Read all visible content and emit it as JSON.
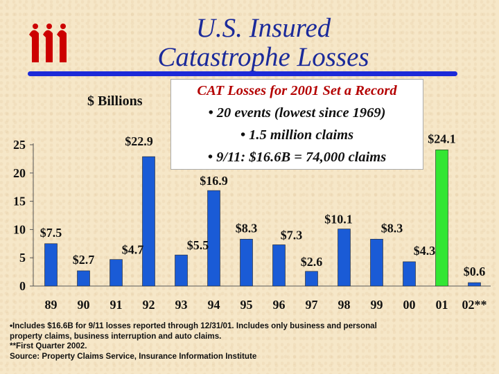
{
  "title_lines": [
    "U.S. Insured",
    "Catastrophe Losses"
  ],
  "y_unit_label": "$ Billions",
  "callout": {
    "heading": "CAT Losses for 2001 Set a Record",
    "lines": [
      "• 20 events (lowest since 1969)",
      "• 1.5 million claims",
      "• 9/11: $16.6B = 74,000 claims"
    ]
  },
  "footnote_lines": [
    "•Includes $16.6B for 9/11 losses reported through 12/31/01.  Includes only business and personal",
    "property claims, business interruption and auto claims.",
    "**First Quarter 2002.",
    "Source:  Property Claims Service, Insurance Information Institute"
  ],
  "colors": {
    "bar": "#1a5bd6",
    "highlight": "#33e633",
    "title": "#1b2a9a",
    "logo": "#cc0000",
    "callout_heading": "#b40000"
  },
  "logo_icon": "iii-logo",
  "chart_data": {
    "type": "bar",
    "categories": [
      "89",
      "90",
      "91",
      "92",
      "93",
      "94",
      "95",
      "96",
      "97",
      "98",
      "99",
      "00",
      "01",
      "02**"
    ],
    "values": [
      7.5,
      2.7,
      4.7,
      22.9,
      5.5,
      16.9,
      8.3,
      7.3,
      2.6,
      10.1,
      8.3,
      4.3,
      24.1,
      0.6
    ],
    "data_labels": [
      "$7.5",
      "$2.7",
      "$4.7",
      "$22.9",
      "$5.5",
      "$16.9",
      "$8.3",
      "$7.3",
      "$2.6",
      "$10.1",
      "$8.3",
      "$4.3",
      "$24.1",
      "$0.6"
    ],
    "highlight_category": "01",
    "y_ticks": [
      "0",
      "5",
      "10",
      "15",
      "20",
      "25"
    ],
    "ylim": [
      0,
      25
    ],
    "grid": false
  }
}
